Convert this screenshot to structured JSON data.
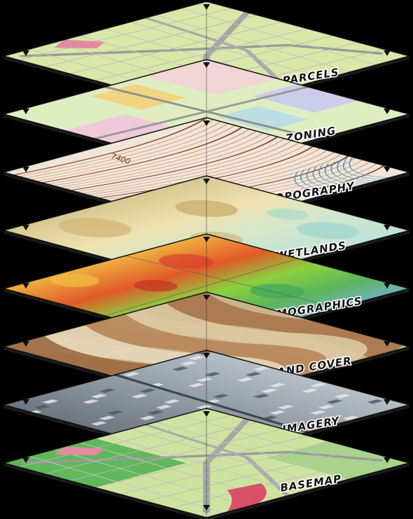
{
  "diagram": {
    "layers": [
      {
        "key": "parcels",
        "label": "PARCELS",
        "base": "#d9e8a8"
      },
      {
        "key": "zoning",
        "label": "ZONING",
        "base": "#dfeec0"
      },
      {
        "key": "topography",
        "label": "TOPOGRAPHY",
        "base": "#efe6d8"
      },
      {
        "key": "wetlands",
        "label": "WETLANDS",
        "base": "#e7d9a6"
      },
      {
        "key": "demographics",
        "label": "DEMOGRAPHICS",
        "base": "#e3a040"
      },
      {
        "key": "landcover",
        "label": "LAND COVER",
        "base": "#c9b48a"
      },
      {
        "key": "imagery",
        "label": "IMAGERY",
        "base": "#8f9aa4"
      },
      {
        "key": "basemap",
        "label": "BASEMAP",
        "base": "#cfe3a0"
      }
    ],
    "contour_label": "7400"
  }
}
